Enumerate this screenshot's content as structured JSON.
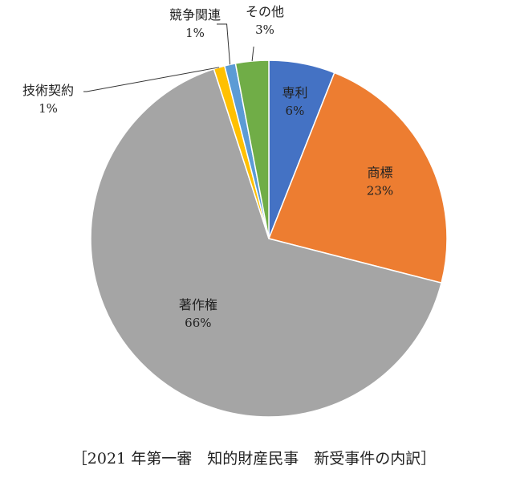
{
  "chart_data": {
    "type": "pie",
    "title": "",
    "caption": "［2021 年第一審　知的財産民事　新受事件の内訳］",
    "categories": [
      "専利",
      "商標",
      "著作権",
      "技術契約",
      "競争関連",
      "その他"
    ],
    "values": [
      6,
      23,
      66,
      1,
      1,
      3
    ],
    "value_labels": [
      "6%",
      "23%",
      "66%",
      "1%",
      "1%",
      "3%"
    ],
    "colors": [
      "#4472c4",
      "#ed7d31",
      "#a5a5a5",
      "#ffc000",
      "#5b9bd5",
      "#70ad47"
    ],
    "start": "12 o'clock",
    "direction": "clockwise",
    "legend": "none"
  }
}
